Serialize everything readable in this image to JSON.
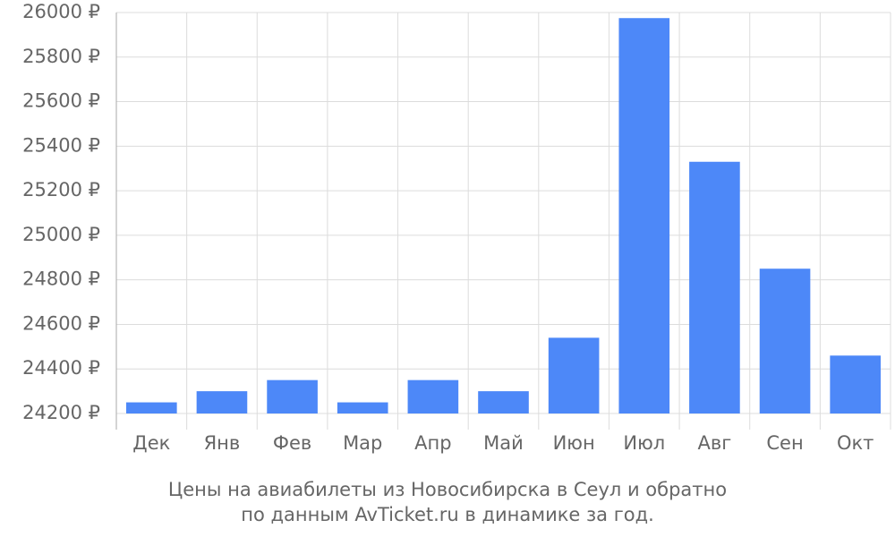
{
  "chart_data": {
    "type": "bar",
    "title": "Цены на авиабилеты из Новосибирска в Сеул и обратно",
    "subtitle": "по данным AvTicket.ru в динамике за год.",
    "categories": [
      "Дек",
      "Янв",
      "Фев",
      "Мар",
      "Апр",
      "Май",
      "Июн",
      "Июл",
      "Авг",
      "Сен",
      "Окт"
    ],
    "values": [
      24250,
      24300,
      24350,
      24250,
      24350,
      24300,
      24540,
      25975,
      25330,
      24850,
      24460
    ],
    "color": "#4d88f8",
    "ylim": [
      24200,
      26000
    ],
    "yticks": [
      {
        "value": 24200,
        "label": "24200 ₽"
      },
      {
        "value": 24400,
        "label": "24400 ₽"
      },
      {
        "value": 24600,
        "label": "24600 ₽"
      },
      {
        "value": 24800,
        "label": "24800 ₽"
      },
      {
        "value": 25000,
        "label": "25000 ₽"
      },
      {
        "value": 25200,
        "label": "25200 ₽"
      },
      {
        "value": 25400,
        "label": "25400 ₽"
      },
      {
        "value": 25600,
        "label": "25600 ₽"
      },
      {
        "value": 25800,
        "label": "25800 ₽"
      },
      {
        "value": 26000,
        "label": "26000 ₽"
      }
    ],
    "grid": true
  }
}
